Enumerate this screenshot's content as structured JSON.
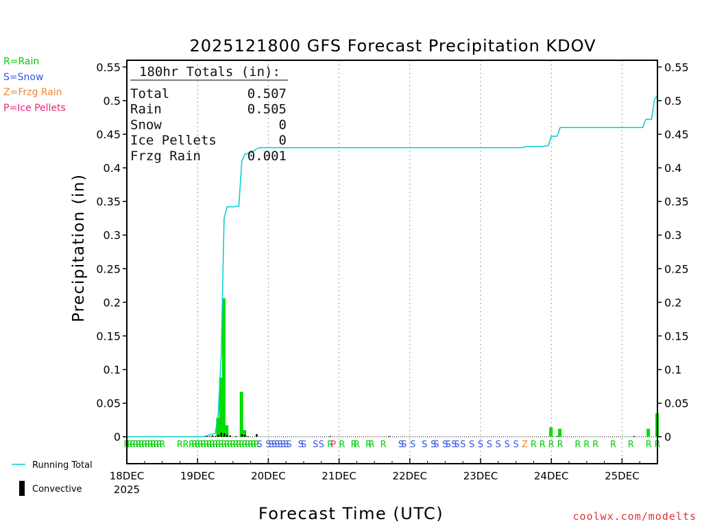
{
  "chart_data": {
    "type": "bar+line",
    "title": "2025121800 GFS Forecast Precipitation KDOV",
    "ylabel": "Precipitation (in)",
    "xlabel": "Forecast Time (UTC)",
    "ylim": [
      -0.04,
      0.56
    ],
    "yticks": [
      0,
      0.05,
      0.1,
      0.15,
      0.2,
      0.25,
      0.3,
      0.35,
      0.4,
      0.45,
      0.5,
      0.55
    ],
    "ytick_labels": [
      "0",
      "0.05",
      "0.1",
      "0.15",
      "0.2",
      "0.25",
      "0.3",
      "0.35",
      "0.4",
      "0.45",
      "0.5",
      "0.55"
    ],
    "xlim_hours": [
      0,
      180
    ],
    "xticks": [
      {
        "hour": 0,
        "label": "18DEC"
      },
      {
        "hour": 24,
        "label": "19DEC"
      },
      {
        "hour": 48,
        "label": "20DEC"
      },
      {
        "hour": 72,
        "label": "21DEC"
      },
      {
        "hour": 96,
        "label": "22DEC"
      },
      {
        "hour": 120,
        "label": "23DEC"
      },
      {
        "hour": 144,
        "label": "24DEC"
      },
      {
        "hour": 168,
        "label": "25DEC"
      }
    ],
    "year_label": "2025",
    "precip_bars": {
      "name": "Rain",
      "color": "#00dd00",
      "hours": [
        31,
        32,
        33,
        34,
        39,
        40,
        144,
        147,
        177,
        180
      ],
      "values": [
        0.028,
        0.088,
        0.206,
        0.017,
        0.067,
        0.01,
        0.014,
        0.012,
        0.012,
        0.035
      ]
    },
    "convective_bars": {
      "name": "Convective",
      "color": "#000000",
      "hours": [
        27,
        28,
        29,
        30,
        31,
        32,
        33,
        34,
        35,
        37,
        39,
        40,
        41,
        44,
        69,
        89,
        146,
        172
      ],
      "values": [
        0.002,
        0.001,
        0.002,
        0.001,
        0.003,
        0.006,
        0.005,
        0.003,
        0.002,
        0.001,
        0.004,
        0.003,
        0.001,
        0.004,
        0.001,
        0.001,
        0.001,
        0.001
      ]
    },
    "running_total": {
      "name": "Running Total",
      "color": "#00cccc",
      "hours": [
        0,
        26,
        28,
        30,
        31,
        32,
        33,
        34,
        36,
        38,
        39,
        40,
        42,
        43,
        44,
        45,
        46,
        48,
        72,
        96,
        120,
        134,
        136,
        141,
        143,
        144,
        146,
        147,
        168,
        175,
        176,
        178,
        179,
        180
      ],
      "values": [
        0,
        0,
        0.003,
        0.005,
        0.033,
        0.121,
        0.325,
        0.342,
        0.342,
        0.343,
        0.41,
        0.42,
        0.422,
        0.425,
        0.428,
        0.43,
        0.43,
        0.43,
        0.43,
        0.43,
        0.43,
        0.43,
        0.432,
        0.432,
        0.433,
        0.447,
        0.447,
        0.46,
        0.46,
        0.46,
        0.472,
        0.472,
        0.502,
        0.507
      ]
    },
    "ptype_codes": [
      {
        "hour": 0,
        "code": "R"
      },
      {
        "hour": 1,
        "code": "R"
      },
      {
        "hour": 2,
        "code": "R"
      },
      {
        "hour": 3,
        "code": "R"
      },
      {
        "hour": 4,
        "code": "R"
      },
      {
        "hour": 5,
        "code": "R"
      },
      {
        "hour": 6,
        "code": "R"
      },
      {
        "hour": 7,
        "code": "R"
      },
      {
        "hour": 8,
        "code": "R"
      },
      {
        "hour": 9,
        "code": "R"
      },
      {
        "hour": 10,
        "code": "R"
      },
      {
        "hour": 11,
        "code": "R"
      },
      {
        "hour": 12,
        "code": "R"
      },
      {
        "hour": 18,
        "code": "R"
      },
      {
        "hour": 20,
        "code": "R"
      },
      {
        "hour": 22,
        "code": "R"
      },
      {
        "hour": 23,
        "code": "R"
      },
      {
        "hour": 24,
        "code": "R"
      },
      {
        "hour": 25,
        "code": "R"
      },
      {
        "hour": 26,
        "code": "R"
      },
      {
        "hour": 27,
        "code": "R"
      },
      {
        "hour": 28,
        "code": "R"
      },
      {
        "hour": 29,
        "code": "R"
      },
      {
        "hour": 30,
        "code": "R"
      },
      {
        "hour": 31,
        "code": "R"
      },
      {
        "hour": 32,
        "code": "R"
      },
      {
        "hour": 33,
        "code": "R"
      },
      {
        "hour": 34,
        "code": "R"
      },
      {
        "hour": 35,
        "code": "R"
      },
      {
        "hour": 36,
        "code": "R"
      },
      {
        "hour": 37,
        "code": "R"
      },
      {
        "hour": 38,
        "code": "R"
      },
      {
        "hour": 39,
        "code": "R"
      },
      {
        "hour": 40,
        "code": "R"
      },
      {
        "hour": 41,
        "code": "R"
      },
      {
        "hour": 42,
        "code": "R"
      },
      {
        "hour": 43,
        "code": "R"
      },
      {
        "hour": 44,
        "code": "R"
      },
      {
        "hour": 45,
        "code": "S"
      },
      {
        "hour": 48,
        "code": "S"
      },
      {
        "hour": 49,
        "code": "S"
      },
      {
        "hour": 50,
        "code": "S"
      },
      {
        "hour": 51,
        "code": "S"
      },
      {
        "hour": 52,
        "code": "S"
      },
      {
        "hour": 53,
        "code": "S"
      },
      {
        "hour": 54,
        "code": "S"
      },
      {
        "hour": 55,
        "code": "S"
      },
      {
        "hour": 59,
        "code": "S"
      },
      {
        "hour": 60,
        "code": "S"
      },
      {
        "hour": 64,
        "code": "S"
      },
      {
        "hour": 66,
        "code": "S"
      },
      {
        "hour": 69,
        "code": "R"
      },
      {
        "hour": 70,
        "code": "P"
      },
      {
        "hour": 73,
        "code": "R"
      },
      {
        "hour": 77,
        "code": "R"
      },
      {
        "hour": 78,
        "code": "R"
      },
      {
        "hour": 82,
        "code": "R"
      },
      {
        "hour": 83,
        "code": "R"
      },
      {
        "hour": 87,
        "code": "R"
      },
      {
        "hour": 93,
        "code": "S"
      },
      {
        "hour": 94,
        "code": "S"
      },
      {
        "hour": 97,
        "code": "S"
      },
      {
        "hour": 101,
        "code": "S"
      },
      {
        "hour": 104,
        "code": "S"
      },
      {
        "hour": 105,
        "code": "S"
      },
      {
        "hour": 108,
        "code": "S"
      },
      {
        "hour": 109,
        "code": "S"
      },
      {
        "hour": 111,
        "code": "S"
      },
      {
        "hour": 112,
        "code": "S"
      },
      {
        "hour": 114,
        "code": "S"
      },
      {
        "hour": 117,
        "code": "S"
      },
      {
        "hour": 120,
        "code": "S"
      },
      {
        "hour": 123,
        "code": "S"
      },
      {
        "hour": 126,
        "code": "S"
      },
      {
        "hour": 129,
        "code": "S"
      },
      {
        "hour": 132,
        "code": "S"
      },
      {
        "hour": 135,
        "code": "Z"
      },
      {
        "hour": 138,
        "code": "R"
      },
      {
        "hour": 141,
        "code": "R"
      },
      {
        "hour": 144,
        "code": "R"
      },
      {
        "hour": 147,
        "code": "R"
      },
      {
        "hour": 153,
        "code": "R"
      },
      {
        "hour": 156,
        "code": "R"
      },
      {
        "hour": 159,
        "code": "R"
      },
      {
        "hour": 165,
        "code": "R"
      },
      {
        "hour": 171,
        "code": "R"
      },
      {
        "hour": 177,
        "code": "R"
      },
      {
        "hour": 180,
        "code": "R"
      }
    ],
    "ptype_colors": {
      "R": "#00cc00",
      "S": "#3355dd",
      "Z": "#ee8833",
      "P": "#ee2277"
    },
    "totals_box": {
      "header": "180hr Totals (in):",
      "rows": [
        {
          "label": "Total",
          "value": "0.507"
        },
        {
          "label": "Rain",
          "value": "0.505"
        },
        {
          "label": "Snow",
          "value": "0"
        },
        {
          "label": "Ice Pellets",
          "value": "0"
        },
        {
          "label": "Frzg Rain",
          "value": "0.001"
        }
      ]
    },
    "ptype_legend": [
      {
        "text": "R=Rain",
        "color": "#00cc00"
      },
      {
        "text": "S=Snow",
        "color": "#3355dd"
      },
      {
        "text": "Z=Frzg Rain",
        "color": "#ee8833"
      },
      {
        "text": "P=Ice Pellets",
        "color": "#ee2277"
      }
    ],
    "series_legend": [
      {
        "label": "Running Total",
        "kind": "line",
        "color": "#00cccc"
      },
      {
        "label": "Convective",
        "kind": "bar",
        "color": "#000000"
      }
    ]
  },
  "watermark": "coolwx.com/modelts"
}
